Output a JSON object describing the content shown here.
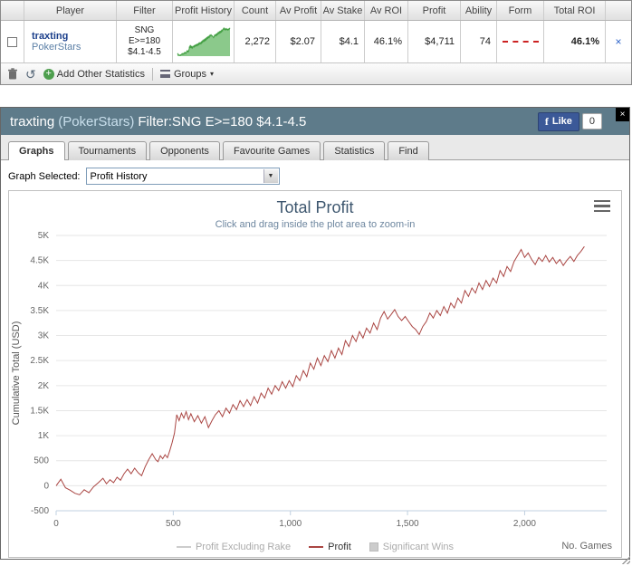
{
  "top_table": {
    "headers": [
      "Player",
      "Filter",
      "Profit History",
      "Count",
      "Av Profit",
      "Av Stake",
      "Av ROI",
      "Profit",
      "Ability",
      "Form",
      "Total ROI"
    ],
    "row": {
      "player": "traxting",
      "site": "PokerStars",
      "filter_lines": [
        "SNG",
        "E>=180",
        "$4.1-4.5"
      ],
      "count": "2,272",
      "av_profit": "$2.07",
      "av_stake": "$4.1",
      "av_roi": "46.1%",
      "profit": "$4,711",
      "ability": "74",
      "total_roi": "46.1%",
      "remove_label": "×"
    },
    "toolbar": {
      "add_other_statistics": "Add Other Statistics",
      "groups": "Groups",
      "refresh_glyph": "↺",
      "add_glyph": "+",
      "caret": "▾"
    }
  },
  "panel": {
    "title_player": "traxting",
    "title_site": "(PokerStars)",
    "title_filter": "Filter:SNG E>=180 $4.1-4.5",
    "close_label": "×",
    "fb_like": "Like",
    "fb_f": "f",
    "fb_count": "0",
    "tabs": [
      "Graphs",
      "Tournaments",
      "Opponents",
      "Favourite Games",
      "Statistics",
      "Find"
    ],
    "graph_selected_label": "Graph Selected:",
    "graph_selected_value": "Profit History",
    "dropdown_arrow": "▼"
  },
  "sparkline": {
    "fill": "#8bc98b",
    "stroke": "#44a044"
  },
  "chart_data": {
    "type": "line",
    "title": "Total Profit",
    "subtitle": "Click and drag inside the plot area to zoom-in",
    "ylabel": "Cumulative Total (USD)",
    "xlabel": "No. Games",
    "xlim": [
      0,
      2350
    ],
    "ylim": [
      -500,
      5000
    ],
    "x_ticks": [
      0,
      500,
      1000,
      1500,
      2000
    ],
    "x_tick_labels": [
      "0",
      "500",
      "1,000",
      "1,500",
      "2,000"
    ],
    "y_ticks": [
      -500,
      0,
      500,
      1000,
      1500,
      2000,
      2500,
      3000,
      3500,
      4000,
      4500,
      5000
    ],
    "y_tick_labels": [
      "-500",
      "0",
      "500",
      "1K",
      "1.5K",
      "2K",
      "2.5K",
      "3K",
      "3.5K",
      "4K",
      "4.5K",
      "5K"
    ],
    "grid": true,
    "legend_position": "bottom",
    "series": [
      {
        "name": "Profit Excluding Rake",
        "color": "#cccccc",
        "enabled": false,
        "swatch": "line"
      },
      {
        "name": "Profit",
        "color": "#AA4643",
        "enabled": true,
        "swatch": "line",
        "points": [
          [
            0,
            0
          ],
          [
            20,
            130
          ],
          [
            40,
            -40
          ],
          [
            60,
            -90
          ],
          [
            80,
            -150
          ],
          [
            100,
            -180
          ],
          [
            120,
            -80
          ],
          [
            140,
            -140
          ],
          [
            160,
            -20
          ],
          [
            180,
            60
          ],
          [
            200,
            150
          ],
          [
            215,
            40
          ],
          [
            230,
            120
          ],
          [
            245,
            60
          ],
          [
            260,
            170
          ],
          [
            275,
            110
          ],
          [
            290,
            240
          ],
          [
            305,
            330
          ],
          [
            320,
            240
          ],
          [
            335,
            350
          ],
          [
            350,
            260
          ],
          [
            365,
            200
          ],
          [
            380,
            380
          ],
          [
            395,
            520
          ],
          [
            410,
            640
          ],
          [
            425,
            520
          ],
          [
            435,
            480
          ],
          [
            445,
            600
          ],
          [
            455,
            540
          ],
          [
            465,
            620
          ],
          [
            475,
            560
          ],
          [
            485,
            700
          ],
          [
            495,
            860
          ],
          [
            505,
            1050
          ],
          [
            515,
            1420
          ],
          [
            525,
            1300
          ],
          [
            535,
            1450
          ],
          [
            545,
            1350
          ],
          [
            555,
            1480
          ],
          [
            565,
            1320
          ],
          [
            575,
            1440
          ],
          [
            590,
            1280
          ],
          [
            605,
            1400
          ],
          [
            620,
            1250
          ],
          [
            635,
            1380
          ],
          [
            650,
            1160
          ],
          [
            665,
            1300
          ],
          [
            680,
            1420
          ],
          [
            695,
            1500
          ],
          [
            710,
            1380
          ],
          [
            725,
            1550
          ],
          [
            740,
            1450
          ],
          [
            755,
            1620
          ],
          [
            770,
            1520
          ],
          [
            785,
            1700
          ],
          [
            800,
            1580
          ],
          [
            815,
            1720
          ],
          [
            830,
            1600
          ],
          [
            845,
            1780
          ],
          [
            860,
            1650
          ],
          [
            875,
            1850
          ],
          [
            890,
            1750
          ],
          [
            905,
            1950
          ],
          [
            920,
            1830
          ],
          [
            935,
            2000
          ],
          [
            950,
            1900
          ],
          [
            965,
            2080
          ],
          [
            980,
            1950
          ],
          [
            995,
            2100
          ],
          [
            1010,
            1980
          ],
          [
            1025,
            2200
          ],
          [
            1040,
            2100
          ],
          [
            1055,
            2300
          ],
          [
            1070,
            2180
          ],
          [
            1085,
            2450
          ],
          [
            1100,
            2330
          ],
          [
            1115,
            2550
          ],
          [
            1130,
            2400
          ],
          [
            1145,
            2600
          ],
          [
            1160,
            2480
          ],
          [
            1175,
            2700
          ],
          [
            1190,
            2550
          ],
          [
            1205,
            2750
          ],
          [
            1220,
            2620
          ],
          [
            1235,
            2900
          ],
          [
            1250,
            2780
          ],
          [
            1265,
            3000
          ],
          [
            1280,
            2880
          ],
          [
            1295,
            3080
          ],
          [
            1310,
            2950
          ],
          [
            1325,
            3150
          ],
          [
            1340,
            3050
          ],
          [
            1355,
            3250
          ],
          [
            1370,
            3120
          ],
          [
            1385,
            3350
          ],
          [
            1400,
            3480
          ],
          [
            1415,
            3330
          ],
          [
            1430,
            3420
          ],
          [
            1445,
            3520
          ],
          [
            1460,
            3380
          ],
          [
            1475,
            3300
          ],
          [
            1490,
            3380
          ],
          [
            1505,
            3280
          ],
          [
            1520,
            3180
          ],
          [
            1535,
            3120
          ],
          [
            1550,
            3020
          ],
          [
            1565,
            3180
          ],
          [
            1580,
            3280
          ],
          [
            1595,
            3450
          ],
          [
            1610,
            3350
          ],
          [
            1625,
            3500
          ],
          [
            1640,
            3400
          ],
          [
            1655,
            3580
          ],
          [
            1670,
            3450
          ],
          [
            1685,
            3650
          ],
          [
            1700,
            3550
          ],
          [
            1715,
            3750
          ],
          [
            1730,
            3650
          ],
          [
            1745,
            3900
          ],
          [
            1760,
            3780
          ],
          [
            1775,
            3950
          ],
          [
            1790,
            3850
          ],
          [
            1805,
            4050
          ],
          [
            1820,
            3920
          ],
          [
            1835,
            4100
          ],
          [
            1850,
            3980
          ],
          [
            1865,
            4150
          ],
          [
            1880,
            4050
          ],
          [
            1895,
            4300
          ],
          [
            1910,
            4180
          ],
          [
            1925,
            4380
          ],
          [
            1940,
            4280
          ],
          [
            1955,
            4480
          ],
          [
            1970,
            4600
          ],
          [
            1985,
            4720
          ],
          [
            2000,
            4560
          ],
          [
            2015,
            4650
          ],
          [
            2030,
            4520
          ],
          [
            2045,
            4420
          ],
          [
            2060,
            4560
          ],
          [
            2075,
            4480
          ],
          [
            2090,
            4600
          ],
          [
            2105,
            4470
          ],
          [
            2120,
            4560
          ],
          [
            2135,
            4440
          ],
          [
            2150,
            4520
          ],
          [
            2165,
            4400
          ],
          [
            2180,
            4500
          ],
          [
            2195,
            4580
          ],
          [
            2210,
            4480
          ],
          [
            2225,
            4600
          ],
          [
            2240,
            4680
          ],
          [
            2255,
            4780
          ]
        ]
      },
      {
        "name": "Significant Wins",
        "color": "#cccccc",
        "enabled": false,
        "swatch": "box"
      }
    ]
  }
}
